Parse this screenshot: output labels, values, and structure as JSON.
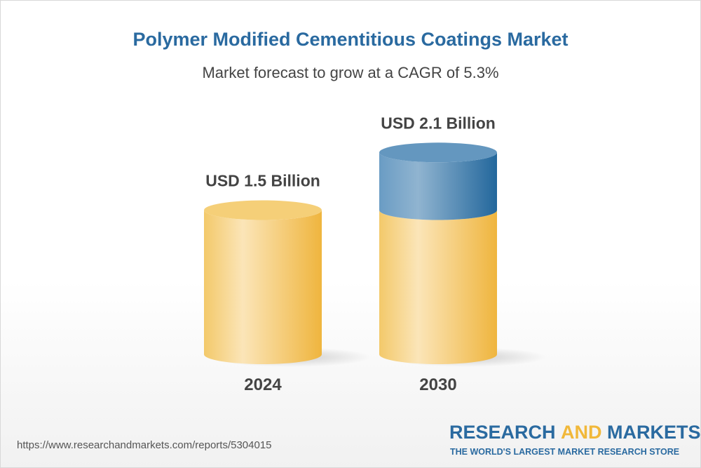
{
  "title": "Polymer Modified Cementitious Coatings Market",
  "subtitle": "Market forecast to grow at a CAGR of 5.3%",
  "url": "https://www.researchandmarkets.com/reports/5304015",
  "logo": {
    "part1": "RESEARCH ",
    "part2": "AND",
    "part3": " MARKETS",
    "tagline": "THE WORLD'S LARGEST MARKET RESEARCH STORE"
  },
  "colors": {
    "base": "#f2c14e",
    "growth": "#2a6aa0",
    "title": "#2a6aa0"
  },
  "chart_data": {
    "type": "bar",
    "style": "3d-cylinder",
    "categories": [
      "2024",
      "2030"
    ],
    "values": [
      1.5,
      2.1
    ],
    "unit": "USD Billion",
    "data_labels": [
      "USD 1.5 Billion",
      "USD 2.1 Billion"
    ],
    "grid": false,
    "legend": "none"
  }
}
